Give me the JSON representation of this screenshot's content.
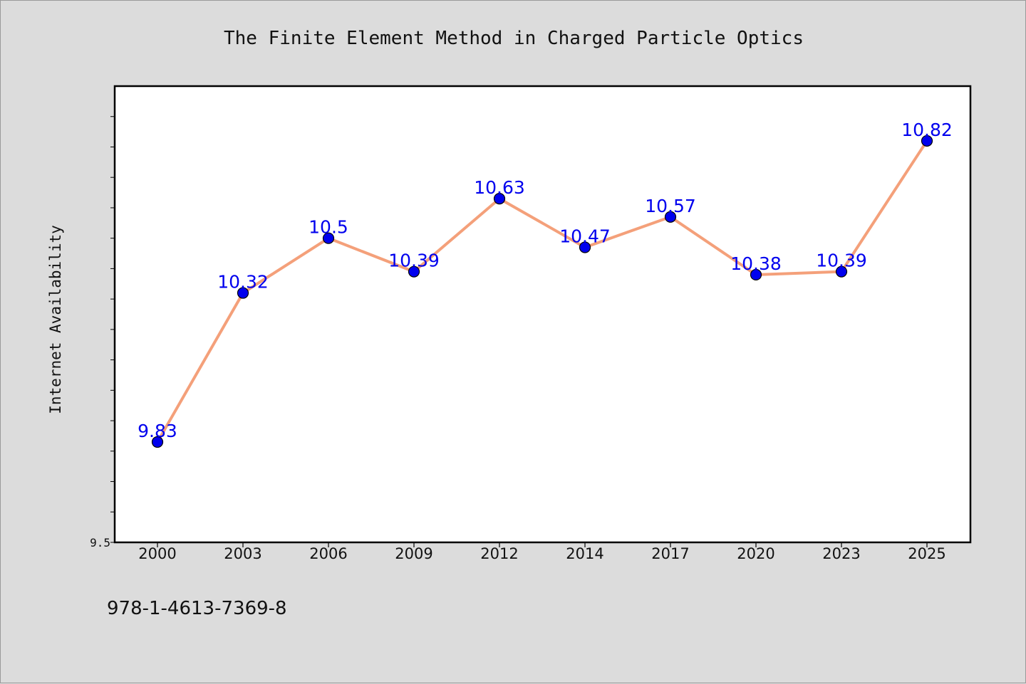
{
  "chart_data": {
    "type": "line",
    "title": "The Finite Element Method in Charged Particle Optics",
    "xlabel": "",
    "ylabel": "Internet Availability",
    "categories": [
      "2000",
      "2003",
      "2006",
      "2009",
      "2012",
      "2014",
      "2017",
      "2020",
      "2023",
      "2025"
    ],
    "series": [
      {
        "values": [
          9.83,
          10.32,
          10.5,
          10.39,
          10.63,
          10.47,
          10.57,
          10.38,
          10.39,
          10.82
        ],
        "data_labels": [
          "9.83",
          "10.32",
          "10.5",
          "10.39",
          "10.63",
          "10.47",
          "10.57",
          "10.38",
          "10.39",
          "10.82"
        ],
        "line_color": "#f4a07a",
        "marker_color": "#0000ee"
      }
    ],
    "ylim": [
      9.5,
      11.0
    ],
    "yticks": [
      "9.5"
    ],
    "grid": false,
    "legend": "none"
  },
  "footer_text": "978-1-4613-7369-8"
}
